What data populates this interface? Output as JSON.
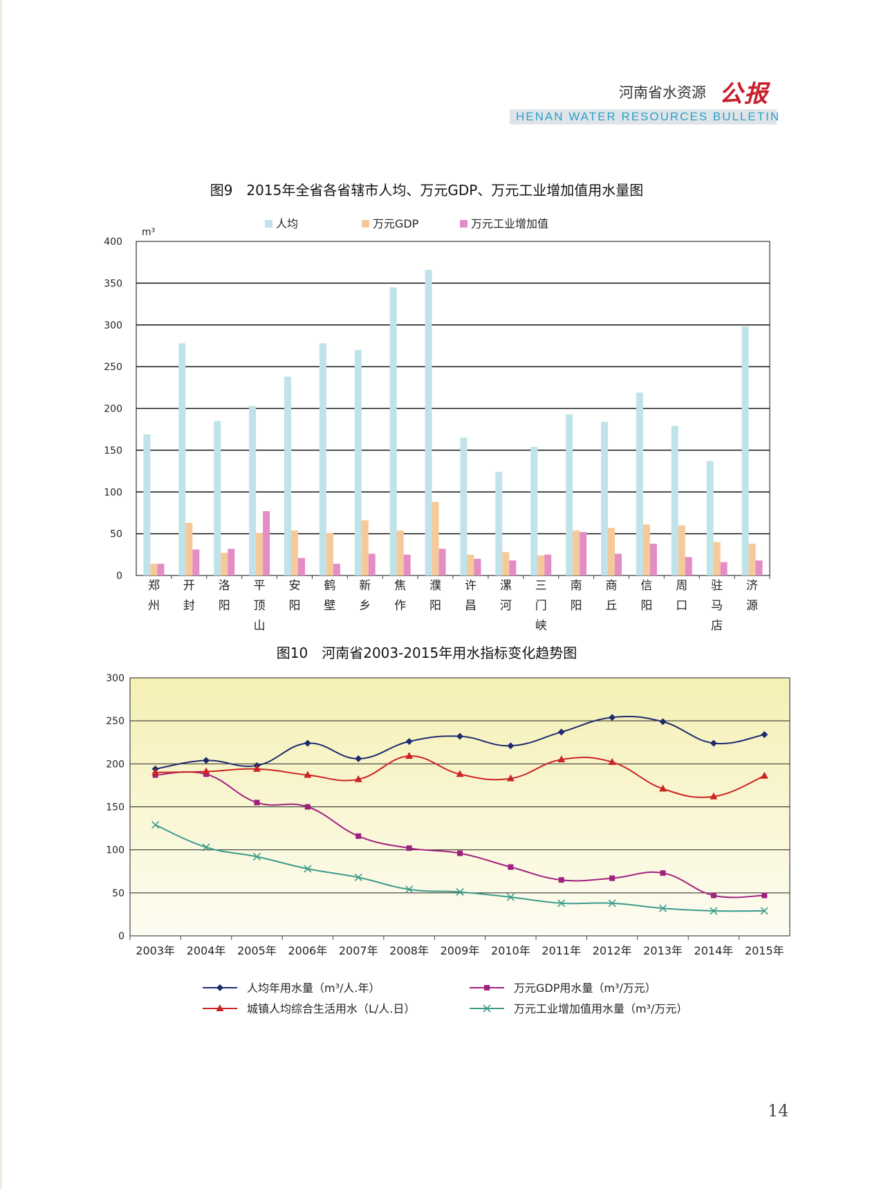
{
  "header": {
    "title_cn": "河南省水资源",
    "logo": "公报",
    "title_en": "HENAN WATER RESOURCES BULLETIN"
  },
  "page_number": "14",
  "chart_data": [
    {
      "type": "bar",
      "title": "图9　2015年全省各省辖市人均、万元GDP、万元工业增加值用水量图",
      "ylabel": "m³",
      "ylim": [
        0,
        400
      ],
      "yticks": [
        0,
        50,
        100,
        150,
        200,
        250,
        300,
        350,
        400
      ],
      "grid": true,
      "legend_position": "top",
      "categories": [
        "郑州",
        "开封",
        "洛阳",
        "平顶山",
        "安阳",
        "鹤壁",
        "新乡",
        "焦作",
        "濮阳",
        "许昌",
        "漯河",
        "三门峡",
        "南阳",
        "商丘",
        "信阳",
        "周口",
        "驻马店",
        "济源"
      ],
      "series": [
        {
          "name": "人均",
          "color": "#bfe3e8",
          "values": [
            169,
            278,
            185,
            203,
            238,
            278,
            270,
            345,
            366,
            165,
            124,
            154,
            193,
            184,
            219,
            179,
            137,
            298
          ]
        },
        {
          "name": "万元GDP",
          "color": "#f6c99a",
          "values": [
            14,
            63,
            27,
            51,
            54,
            51,
            66,
            54,
            88,
            25,
            28,
            24,
            54,
            57,
            61,
            60,
            40,
            38
          ]
        },
        {
          "name": "万元工业增加值",
          "color": "#e48cc4",
          "values": [
            14,
            31,
            32,
            77,
            21,
            14,
            26,
            25,
            32,
            20,
            18,
            25,
            52,
            26,
            38,
            22,
            16,
            18
          ]
        }
      ]
    },
    {
      "type": "line",
      "title": "图10　河南省2003-2015年用水指标变化趋势图",
      "ylim": [
        0,
        300
      ],
      "yticks": [
        0,
        50,
        100,
        150,
        200,
        250,
        300
      ],
      "grid": true,
      "legend_position": "bottom",
      "categories": [
        "2003年",
        "2004年",
        "2005年",
        "2006年",
        "2007年",
        "2008年",
        "2009年",
        "2010年",
        "2011年",
        "2012年",
        "2013年",
        "2014年",
        "2015年"
      ],
      "series": [
        {
          "name": "人均年用水量（m³/人.年）",
          "color": "#1e2a6e",
          "marker": "diamond",
          "values": [
            194,
            204,
            198,
            224,
            206,
            226,
            232,
            221,
            237,
            254,
            249,
            224,
            234
          ]
        },
        {
          "name": "万元GDP用水量（m³/万元）",
          "color": "#a0207e",
          "marker": "square",
          "values": [
            187,
            188,
            155,
            150,
            116,
            102,
            96,
            80,
            65,
            67,
            73,
            47,
            47
          ]
        },
        {
          "name": "城镇人均综合生活用水（L/人.日）",
          "color": "#cc2222",
          "marker": "triangle",
          "values": [
            190,
            191,
            194,
            187,
            182,
            209,
            188,
            183,
            205,
            202,
            171,
            162,
            186
          ]
        },
        {
          "name": "万元工业增加值用水量（m³/万元）",
          "color": "#3a9a8a",
          "marker": "x",
          "values": [
            129,
            103,
            92,
            78,
            68,
            54,
            51,
            45,
            38,
            38,
            32,
            29,
            29
          ]
        }
      ]
    }
  ]
}
